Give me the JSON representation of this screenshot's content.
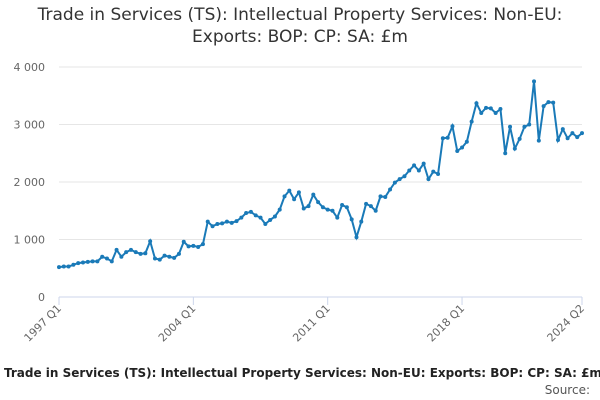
{
  "chart_data": {
    "type": "line",
    "title": "Trade in Services (TS): Intellectual Property Services: Non-EU: Exports: BOP: CP: SA: £m",
    "footer": "Trade in Services (TS): Intellectual Property Services: Non-EU: Exports: BOP: CP: SA: £m",
    "source": "Source:",
    "categories": [
      "1997 Q1",
      null,
      null,
      null,
      null,
      null,
      null,
      null,
      null,
      null,
      null,
      null,
      null,
      null,
      null,
      null,
      null,
      null,
      null,
      null,
      null,
      null,
      null,
      null,
      null,
      null,
      null,
      null,
      "2004 Q1",
      null,
      null,
      null,
      null,
      null,
      null,
      null,
      null,
      null,
      null,
      null,
      null,
      null,
      null,
      null,
      null,
      null,
      null,
      null,
      null,
      null,
      null,
      null,
      null,
      null,
      null,
      null,
      "2011 Q1",
      null,
      null,
      null,
      null,
      null,
      null,
      null,
      null,
      null,
      null,
      null,
      null,
      null,
      null,
      null,
      null,
      null,
      null,
      null,
      null,
      null,
      null,
      null,
      null,
      null,
      null,
      null,
      "2018 Q1",
      null,
      null,
      null,
      null,
      null,
      null,
      null,
      null,
      null,
      null,
      null,
      null,
      null,
      null,
      null,
      null,
      null,
      null,
      null,
      null,
      null,
      null,
      null,
      null,
      "2024 Q2"
    ],
    "series": [
      {
        "name": "Trade in Services (TS): Intellectual Property Services: Non-EU: Exports: BOP: CP: SA: £m",
        "color": "#1a7ab8",
        "values": [
          520,
          530,
          530,
          560,
          590,
          600,
          610,
          620,
          620,
          700,
          670,
          620,
          820,
          700,
          780,
          820,
          780,
          750,
          760,
          970,
          670,
          650,
          720,
          700,
          680,
          750,
          960,
          880,
          890,
          870,
          920,
          1310,
          1230,
          1270,
          1280,
          1310,
          1290,
          1320,
          1380,
          1460,
          1480,
          1420,
          1380,
          1270,
          1340,
          1400,
          1520,
          1750,
          1850,
          1700,
          1820,
          1540,
          1580,
          1780,
          1650,
          1560,
          1520,
          1500,
          1380,
          1600,
          1560,
          1350,
          1040,
          1310,
          1620,
          1580,
          1500,
          1750,
          1740,
          1870,
          1990,
          2050,
          2100,
          2200,
          2290,
          2200,
          2320,
          2050,
          2180,
          2140,
          2760,
          2770,
          2970,
          2540,
          2600,
          2700,
          3050,
          3370,
          3200,
          3290,
          3280,
          3200,
          3270,
          2500,
          2960,
          2580,
          2750,
          2960,
          3000,
          3750,
          2720,
          3320,
          3390,
          3380,
          2730,
          2920,
          2760,
          2850,
          2780,
          2850
        ]
      }
    ],
    "ylim": [
      0,
      4000
    ],
    "yticks": [
      0,
      {
        "value": 1000,
        "label": "1 000"
      },
      {
        "value": 2000,
        "label": "2 000"
      },
      {
        "value": 3000,
        "label": "3 000"
      },
      {
        "value": 4000,
        "label": "4 000"
      }
    ],
    "grid": true
  }
}
